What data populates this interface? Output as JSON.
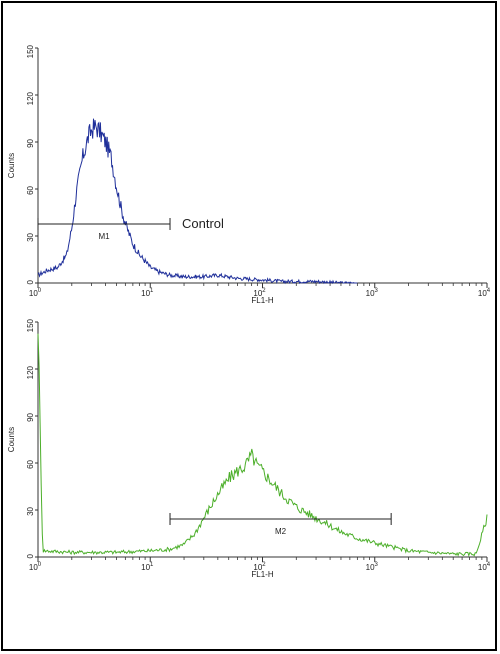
{
  "chart_data": [
    {
      "type": "histogram",
      "xlabel": "FL1-H",
      "ylabel": "Counts",
      "xscale": "log",
      "xlim": [
        1,
        10000
      ],
      "ylim": [
        0,
        150
      ],
      "x_ticks": [
        "10^0",
        "10^1",
        "10^2",
        "10^3",
        "10^4"
      ],
      "y_ticks": [
        "0",
        "30",
        "60",
        "90",
        "120",
        "150"
      ],
      "line_color": "#1f2f9a",
      "marker": {
        "label": "M1",
        "x_start": 1.0,
        "x_end": 15
      },
      "annotation": "Control",
      "series": [
        {
          "x": [
            1.0,
            1.2,
            1.5,
            1.8,
            2.0,
            2.2,
            2.5,
            2.8,
            3.0,
            3.3,
            3.6,
            4.0,
            4.5,
            5.0,
            5.5,
            6.0,
            7.0,
            8.0,
            9.0,
            10,
            12,
            15,
            20,
            30,
            40,
            60,
            100,
            150,
            200,
            300,
            500,
            700
          ],
          "y": [
            5,
            8,
            10,
            18,
            35,
            58,
            80,
            93,
            98,
            100,
            96,
            90,
            80,
            62,
            48,
            38,
            25,
            18,
            14,
            10,
            7,
            5,
            4,
            4,
            5,
            3,
            2,
            1,
            1,
            1,
            0,
            0
          ]
        }
      ]
    },
    {
      "type": "histogram",
      "xlabel": "FL1-H",
      "ylabel": "Counts",
      "xscale": "log",
      "xlim": [
        1,
        10000
      ],
      "ylim": [
        0,
        150
      ],
      "x_ticks": [
        "10^0",
        "10^1",
        "10^2",
        "10^3",
        "10^4"
      ],
      "y_ticks": [
        "0",
        "30",
        "60",
        "90",
        "120",
        "150"
      ],
      "line_color": "#4caf2a",
      "marker": {
        "label": "M2",
        "x_start": 15,
        "x_end": 1400
      },
      "series": [
        {
          "x": [
            1.0,
            1.1,
            2,
            5,
            10,
            15,
            20,
            25,
            30,
            40,
            50,
            60,
            70,
            80,
            90,
            100,
            120,
            150,
            200,
            300,
            400,
            500,
            700,
            1000,
            1500,
            2000,
            3000,
            5000,
            8000,
            10000
          ],
          "y": [
            150,
            4,
            3,
            3,
            4,
            5,
            8,
            15,
            25,
            40,
            50,
            55,
            58,
            65,
            58,
            55,
            48,
            40,
            32,
            25,
            20,
            16,
            12,
            9,
            6,
            4,
            3,
            2,
            2,
            25
          ]
        }
      ]
    }
  ]
}
